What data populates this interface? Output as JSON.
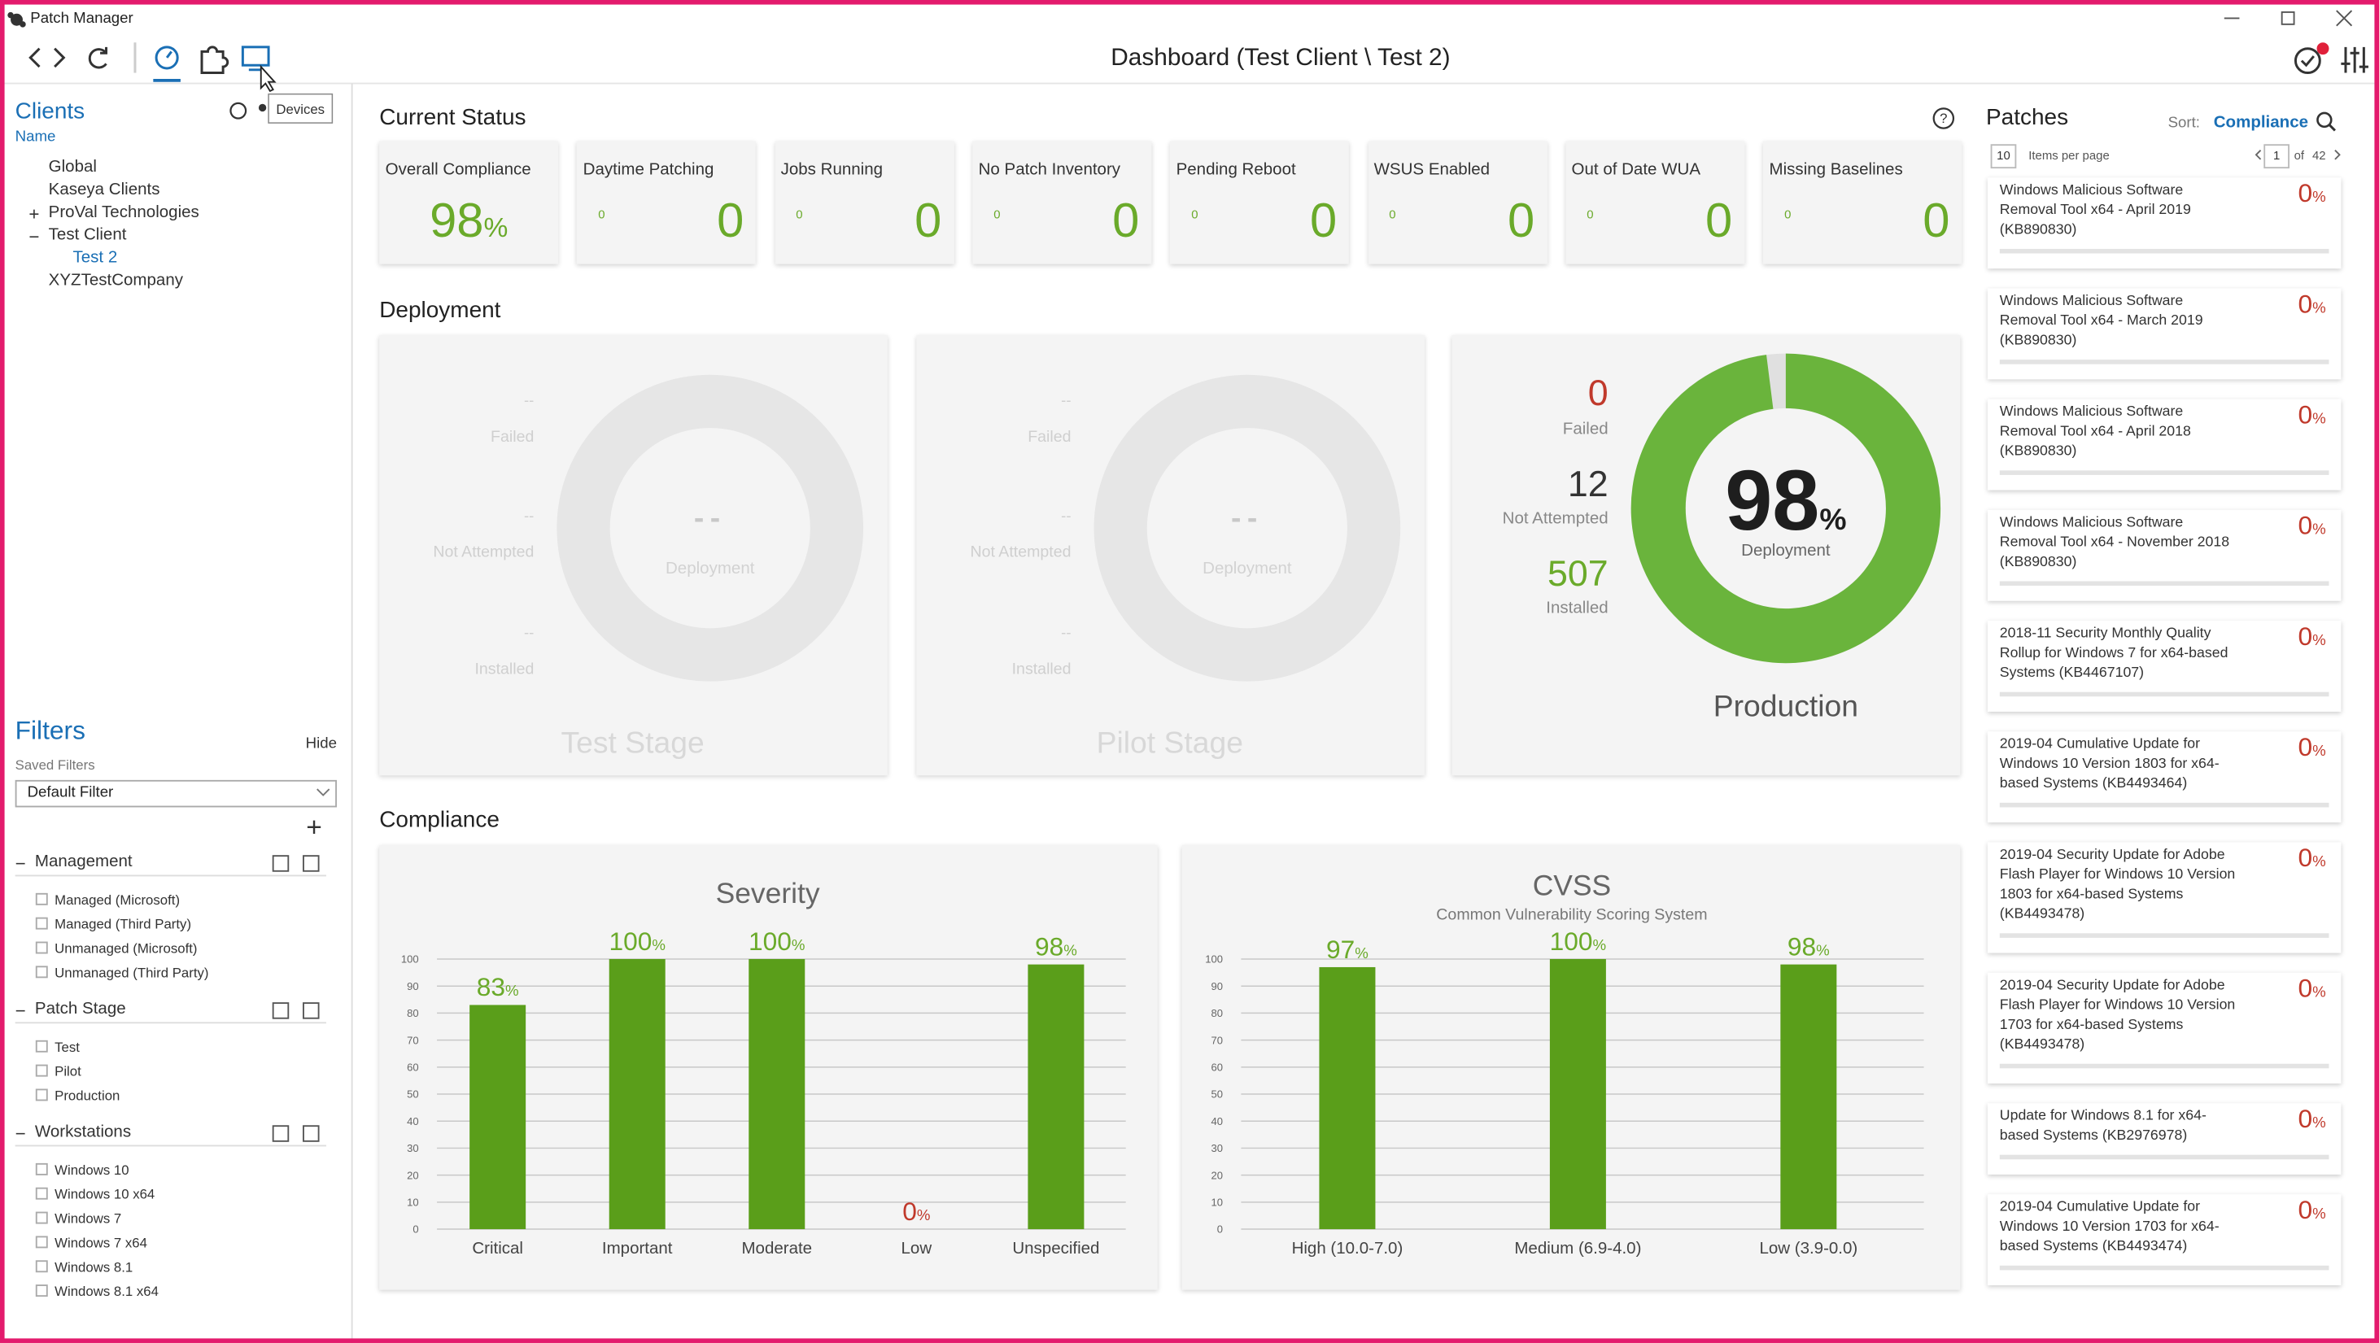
{
  "window": {
    "title": "Patch Manager"
  },
  "toolbar": {
    "tooltip": "Devices",
    "title": "Dashboard (Test Client \\ Test 2)"
  },
  "clients": {
    "heading": "Clients",
    "column": "Name",
    "tree": [
      {
        "label": "Global",
        "level": 1
      },
      {
        "label": "Kaseya Clients",
        "level": 1
      },
      {
        "expander": "+",
        "label": "ProVal Technologies",
        "level": 1
      },
      {
        "expander": "−",
        "label": "Test Client",
        "level": 1
      },
      {
        "label": "Test 2",
        "level": 2,
        "selected": true
      },
      {
        "label": "XYZTestCompany",
        "level": 1
      }
    ]
  },
  "filters": {
    "heading": "Filters",
    "hide": "Hide",
    "saved_label": "Saved Filters",
    "saved_value": "Default Filter",
    "add": "+",
    "groups": [
      {
        "collapse": "−",
        "name": "Management",
        "items": [
          "Managed (Microsoft)",
          "Managed (Third Party)",
          "Unmanaged (Microsoft)",
          "Unmanaged (Third Party)"
        ]
      },
      {
        "collapse": "−",
        "name": "Patch Stage",
        "items": [
          "Test",
          "Pilot",
          "Production"
        ]
      },
      {
        "collapse": "−",
        "name": "Workstations",
        "items": [
          "Windows 10",
          "Windows 10 x64",
          "Windows 7",
          "Windows 7 x64",
          "Windows 8.1",
          "Windows 8.1 x64"
        ]
      }
    ]
  },
  "current_status": {
    "heading": "Current Status",
    "cards": [
      {
        "label": "Overall Compliance",
        "value": 98,
        "unit": "%"
      },
      {
        "label": "Daytime Patching",
        "small": 0,
        "value": 0
      },
      {
        "label": "Jobs Running",
        "small": 0,
        "value": 0
      },
      {
        "label": "No Patch Inventory",
        "small": 0,
        "value": 0
      },
      {
        "label": "Pending Reboot",
        "small": 0,
        "value": 0
      },
      {
        "label": "WSUS Enabled",
        "small": 0,
        "value": 0
      },
      {
        "label": "Out of Date WUA",
        "small": 0,
        "value": 0
      },
      {
        "label": "Missing Baselines",
        "small": 0,
        "value": 0
      }
    ]
  },
  "deployment": {
    "heading": "Deployment",
    "stages": [
      {
        "name": "Test Stage",
        "active": false,
        "failed": "--",
        "failed_label": "Failed",
        "not_attempted": "--",
        "not_attempted_label": "Not Attempted",
        "installed": "--",
        "installed_label": "Installed",
        "center": "--",
        "center_label": "Deployment"
      },
      {
        "name": "Pilot Stage",
        "active": false,
        "failed": "--",
        "failed_label": "Failed",
        "not_attempted": "--",
        "not_attempted_label": "Not Attempted",
        "installed": "--",
        "installed_label": "Installed",
        "center": "--",
        "center_label": "Deployment"
      },
      {
        "name": "Production",
        "active": true,
        "failed": 0,
        "failed_label": "Failed",
        "not_attempted": 12,
        "not_attempted_label": "Not Attempted",
        "installed": 507,
        "installed_label": "Installed",
        "center": 98,
        "unit": "%",
        "center_label": "Deployment"
      }
    ]
  },
  "compliance": {
    "heading": "Compliance",
    "charts": [
      {
        "type": "bar",
        "title": "Severity",
        "categories": [
          "Critical",
          "Important",
          "Moderate",
          "Low",
          "Unspecified"
        ],
        "values": [
          83,
          100,
          100,
          0,
          98
        ],
        "unit": "%",
        "color": "#5a9e1a",
        "ylim": [
          0,
          100
        ],
        "yticks": [
          0,
          10,
          20,
          30,
          40,
          50,
          60,
          70,
          80,
          90,
          100
        ],
        "grid": true
      },
      {
        "type": "bar",
        "title": "CVSS",
        "subtitle": "Common Vulnerability Scoring System",
        "categories": [
          "High (10.0-7.0)",
          "Medium (6.9-4.0)",
          "Low (3.9-0.0)"
        ],
        "values": [
          97,
          100,
          98
        ],
        "unit": "%",
        "color": "#5a9e1a",
        "ylim": [
          0,
          100
        ],
        "yticks": [
          0,
          10,
          20,
          30,
          40,
          50,
          60,
          70,
          80,
          90,
          100
        ],
        "grid": true
      }
    ]
  },
  "patches": {
    "heading": "Patches",
    "sort_label": "Sort:",
    "sort_value": "Compliance",
    "per_page": 10,
    "per_page_label": "Items per page",
    "page": 1,
    "of_label": "of",
    "pages": 42,
    "items": [
      {
        "name": "Windows Malicious Software Removal Tool x64 - April 2019 (KB890830)",
        "value": 0,
        "unit": "%"
      },
      {
        "name": "Windows Malicious Software Removal Tool x64 - March 2019 (KB890830)",
        "value": 0,
        "unit": "%"
      },
      {
        "name": "Windows Malicious Software Removal Tool x64 - April 2018 (KB890830)",
        "value": 0,
        "unit": "%"
      },
      {
        "name": "Windows Malicious Software Removal Tool x64 - November 2018 (KB890830)",
        "value": 0,
        "unit": "%"
      },
      {
        "name": "2018-11 Security Monthly Quality Rollup for Windows 7 for x64-based Systems (KB4467107)",
        "value": 0,
        "unit": "%"
      },
      {
        "name": "2019-04 Cumulative Update for Windows 10 Version 1803 for x64-based Systems (KB4493464)",
        "value": 0,
        "unit": "%"
      },
      {
        "name": "2019-04 Security Update for Adobe Flash Player for Windows 10 Version 1803 for x64-based Systems (KB4493478)",
        "value": 0,
        "unit": "%"
      },
      {
        "name": "2019-04 Security Update for Adobe Flash Player for Windows 10 Version 1703 for x64-based Systems (KB4493478)",
        "value": 0,
        "unit": "%"
      },
      {
        "name": "Update for Windows 8.1 for x64-based Systems (KB2976978)",
        "value": 0,
        "unit": "%"
      },
      {
        "name": "2019-04 Cumulative Update for Windows 10 Version 1703 for x64-based Systems (KB4493474)",
        "value": 0,
        "unit": "%"
      }
    ]
  }
}
